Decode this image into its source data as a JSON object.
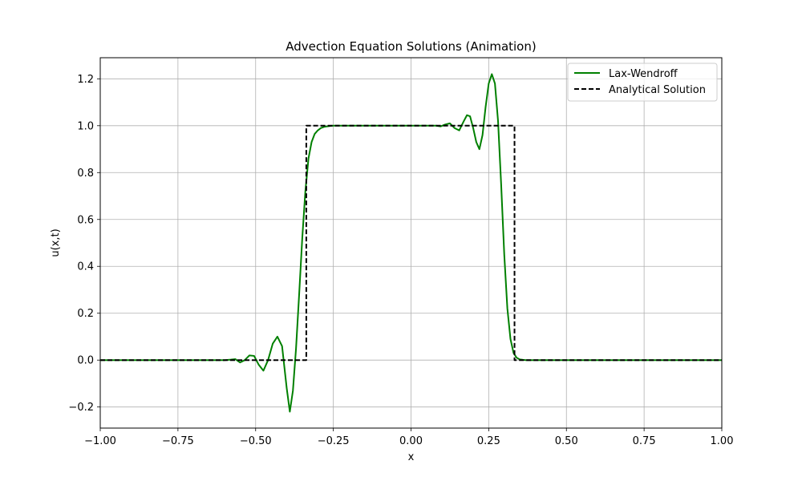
{
  "chart_data": {
    "type": "line",
    "title": "Advection Equation Solutions (Animation)",
    "xlabel": "x",
    "ylabel": "u(x,t)",
    "xlim": [
      -1.0,
      1.0
    ],
    "ylim": [
      -0.29,
      1.29
    ],
    "xticks": [
      -1.0,
      -0.75,
      -0.5,
      -0.25,
      0.0,
      0.25,
      0.5,
      0.75,
      1.0
    ],
    "xtick_labels": [
      "−1.00",
      "−0.75",
      "−0.50",
      "−0.25",
      "0.00",
      "0.25",
      "0.50",
      "0.75",
      "1.00"
    ],
    "yticks": [
      -0.2,
      0.0,
      0.2,
      0.4,
      0.6,
      0.8,
      1.0,
      1.2
    ],
    "ytick_labels": [
      "−0.2",
      "0.0",
      "0.2",
      "0.4",
      "0.6",
      "0.8",
      "1.0",
      "1.2"
    ],
    "grid": true,
    "legend_position": "top-right",
    "series": [
      {
        "name": "Lax-Wendroff",
        "color": "#008000",
        "style": "solid",
        "x": [
          -1.0,
          -0.62,
          -0.6,
          -0.58,
          -0.565,
          -0.55,
          -0.535,
          -0.52,
          -0.505,
          -0.49,
          -0.475,
          -0.46,
          -0.445,
          -0.43,
          -0.415,
          -0.4,
          -0.39,
          -0.38,
          -0.37,
          -0.36,
          -0.35,
          -0.34,
          -0.33,
          -0.32,
          -0.31,
          -0.3,
          -0.29,
          -0.28,
          -0.27,
          -0.26,
          -0.25,
          -0.2,
          -0.1,
          0.0,
          0.05,
          0.08,
          0.095,
          0.11,
          0.125,
          0.14,
          0.155,
          0.17,
          0.18,
          0.19,
          0.2,
          0.21,
          0.22,
          0.23,
          0.24,
          0.25,
          0.26,
          0.27,
          0.28,
          0.29,
          0.3,
          0.31,
          0.32,
          0.33,
          0.34,
          0.35,
          0.36,
          0.37,
          0.38,
          0.39,
          0.4,
          0.41,
          0.42,
          0.44,
          0.5,
          0.75,
          1.0
        ],
        "y": [
          0.0,
          0.0,
          0.0,
          0.002,
          0.004,
          -0.01,
          0.0,
          0.02,
          0.018,
          -0.02,
          -0.045,
          0.0,
          0.07,
          0.1,
          0.06,
          -0.12,
          -0.22,
          -0.13,
          0.05,
          0.28,
          0.52,
          0.72,
          0.86,
          0.93,
          0.965,
          0.98,
          0.99,
          0.995,
          0.997,
          0.999,
          1.0,
          1.0,
          1.0,
          1.0,
          1.0,
          1.0,
          0.997,
          1.005,
          1.01,
          0.99,
          0.98,
          1.02,
          1.045,
          1.04,
          0.99,
          0.93,
          0.9,
          0.96,
          1.08,
          1.18,
          1.22,
          1.18,
          1.02,
          0.75,
          0.45,
          0.22,
          0.09,
          0.03,
          0.01,
          0.003,
          0.001,
          0.0,
          0.0,
          0.0,
          0.0,
          0.0,
          0.0,
          0.0,
          0.0,
          0.0,
          0.0
        ]
      },
      {
        "name": "Analytical Solution",
        "color": "#000000",
        "style": "dashed",
        "x": [
          -1.0,
          -0.337,
          -0.337,
          0.333,
          0.333,
          1.0
        ],
        "y": [
          0.0,
          0.0,
          1.0,
          1.0,
          0.0,
          0.0
        ]
      }
    ]
  }
}
